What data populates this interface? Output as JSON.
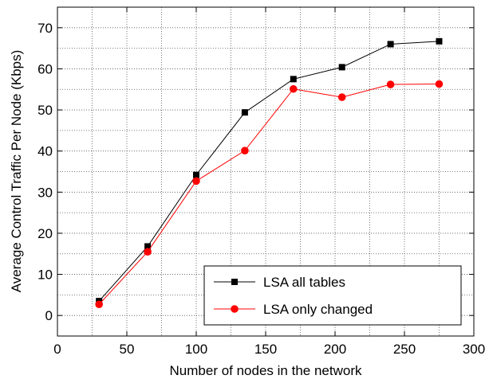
{
  "chart_data": {
    "type": "line",
    "title": "",
    "xlabel": "Number of nodes in the network",
    "ylabel": "Average Control Traffic Per Node (Kbps)",
    "xlim": [
      0,
      300
    ],
    "ylim": [
      -5,
      75
    ],
    "xticks": [
      0,
      50,
      100,
      150,
      200,
      250,
      300
    ],
    "yticks": [
      0,
      10,
      20,
      30,
      40,
      50,
      60,
      70
    ],
    "grid": true,
    "legend_position": "bottom-right",
    "x": [
      30,
      65,
      100,
      135,
      170,
      205,
      240,
      275
    ],
    "series": [
      {
        "name": "LSA all tables",
        "color": "#000000",
        "marker": "square",
        "values": [
          3.5,
          16.8,
          34.2,
          49.4,
          57.5,
          60.4,
          66.0,
          66.7
        ]
      },
      {
        "name": "LSA only changed",
        "color": "#ff0000",
        "marker": "circle",
        "values": [
          2.7,
          15.5,
          32.7,
          40.1,
          55.1,
          53.1,
          56.2,
          56.3
        ]
      }
    ]
  }
}
